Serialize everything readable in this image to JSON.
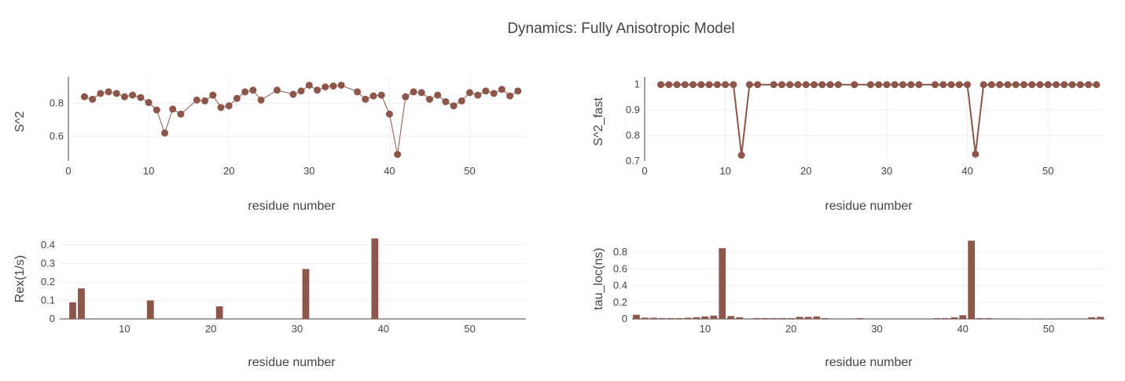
{
  "title": "Dynamics: Fully Anisotropic Model",
  "colors": {
    "marker": "#8c564b",
    "axis": "#444444",
    "grid": "#eeeeee"
  },
  "chart_data": [
    {
      "id": "s2",
      "type": "scatter",
      "mode": "lines+markers",
      "xlabel": "residue number",
      "ylabel": "S^2",
      "xlim": [
        0,
        57
      ],
      "ylim": [
        0.45,
        0.96
      ],
      "xticks": [
        0,
        10,
        20,
        30,
        40,
        50
      ],
      "yticks": [
        0.6,
        0.8
      ],
      "ytick_labels": [
        "0.6",
        "0.8"
      ],
      "series": [
        {
          "x": [
            2,
            3,
            4,
            5,
            6,
            7,
            8,
            9,
            10,
            11,
            12,
            13,
            14,
            16,
            17,
            18,
            19,
            20,
            21,
            22,
            23,
            24,
            26,
            28,
            29,
            30,
            31,
            32,
            33,
            34,
            36,
            37,
            38,
            39,
            40,
            41,
            42,
            43,
            44,
            45,
            46,
            47,
            48,
            49,
            50,
            51,
            52,
            53,
            54,
            55,
            56
          ],
          "y": [
            0.84,
            0.825,
            0.86,
            0.87,
            0.86,
            0.84,
            0.85,
            0.835,
            0.805,
            0.76,
            0.62,
            0.765,
            0.735,
            0.82,
            0.815,
            0.85,
            0.775,
            0.785,
            0.83,
            0.87,
            0.88,
            0.82,
            0.88,
            0.855,
            0.875,
            0.91,
            0.88,
            0.9,
            0.905,
            0.91,
            0.87,
            0.825,
            0.845,
            0.85,
            0.735,
            0.49,
            0.84,
            0.87,
            0.865,
            0.825,
            0.85,
            0.81,
            0.785,
            0.815,
            0.865,
            0.85,
            0.875,
            0.86,
            0.885,
            0.845,
            0.875
          ]
        }
      ]
    },
    {
      "id": "s2fast",
      "type": "scatter",
      "mode": "lines+markers",
      "xlabel": "residue number",
      "ylabel": "S^2_fast",
      "xlim": [
        0,
        57
      ],
      "ylim": [
        0.7,
        1.03
      ],
      "xticks": [
        0,
        10,
        20,
        30,
        40,
        50
      ],
      "yticks": [
        0.7,
        0.8,
        0.9,
        1
      ],
      "ytick_labels": [
        "0.7",
        "0.8",
        "0.9",
        "1"
      ],
      "series": [
        {
          "x": [
            2,
            3,
            4,
            5,
            6,
            7,
            8,
            9,
            10,
            11,
            12,
            13,
            14,
            16,
            17,
            18,
            19,
            20,
            21,
            22,
            23,
            24,
            26,
            28,
            29,
            30,
            31,
            32,
            33,
            34,
            36,
            37,
            38,
            39,
            40,
            41,
            42,
            43,
            44,
            45,
            46,
            47,
            48,
            49,
            50,
            51,
            52,
            53,
            54,
            55,
            56
          ],
          "y": [
            1,
            1,
            1,
            1,
            1,
            1,
            1,
            1,
            1,
            1,
            0.723,
            1,
            1,
            1,
            1,
            1,
            1,
            1,
            1,
            1,
            1,
            1,
            1,
            1,
            1,
            1,
            1,
            1,
            1,
            1,
            1,
            1,
            1,
            1,
            1,
            0.727,
            1,
            1,
            1,
            1,
            1,
            1,
            1,
            1,
            1,
            1,
            1,
            1,
            1,
            1,
            1
          ]
        }
      ]
    },
    {
      "id": "rex",
      "type": "bar",
      "xlabel": "residue number",
      "ylabel": "Rex(1/s)",
      "xlim": [
        2.5,
        56.5
      ],
      "ylim": [
        0,
        0.45
      ],
      "xticks": [
        10,
        20,
        30,
        40,
        50
      ],
      "yticks": [
        0,
        0.1,
        0.2,
        0.3,
        0.4
      ],
      "ytick_labels": [
        "0",
        "0.1",
        "0.2",
        "0.3",
        "0.4"
      ],
      "x": [
        4,
        5,
        13,
        21,
        31,
        39
      ],
      "values": [
        0.09,
        0.165,
        0.1,
        0.068,
        0.27,
        0.435
      ]
    },
    {
      "id": "tauloc",
      "type": "bar",
      "xlabel": "residue number",
      "ylabel": "tau_loc(ns)",
      "xlim": [
        1.5,
        56.5
      ],
      "ylim": [
        0,
        1.0
      ],
      "xticks": [
        10,
        20,
        30,
        40,
        50
      ],
      "yticks": [
        0,
        0.2,
        0.4,
        0.6,
        0.8
      ],
      "ytick_labels": [
        "0",
        "0.2",
        "0.4",
        "0.6",
        "0.8"
      ],
      "x": [
        2,
        3,
        4,
        5,
        6,
        7,
        8,
        9,
        10,
        11,
        12,
        13,
        14,
        16,
        17,
        18,
        19,
        20,
        21,
        22,
        23,
        24,
        28,
        37,
        38,
        39,
        40,
        41,
        42,
        43,
        47,
        48,
        50,
        55,
        56
      ],
      "values": [
        0.05,
        0.015,
        0.015,
        0.01,
        0.01,
        0.01,
        0.015,
        0.02,
        0.03,
        0.04,
        0.85,
        0.035,
        0.02,
        0.01,
        0.01,
        0.01,
        0.01,
        0.01,
        0.025,
        0.025,
        0.03,
        0.01,
        0.01,
        0.01,
        0.01,
        0.02,
        0.045,
        0.94,
        0.01,
        0.01,
        0.005,
        0.005,
        0.005,
        0.02,
        0.025
      ]
    }
  ]
}
